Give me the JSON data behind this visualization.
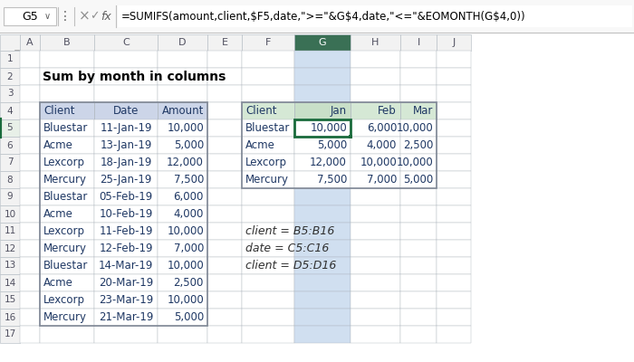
{
  "formula_bar_cell": "G5",
  "formula_bar_formula": "=SUMIFS(amount,client,$F5,date,\">=\"&G$4,date,\"<=\"&EOMONTH(G$4,0))",
  "title": "Sum by month in columns",
  "col_letters": [
    "A",
    "B",
    "C",
    "D",
    "E",
    "F",
    "G",
    "H",
    "I",
    "J"
  ],
  "row_numbers": [
    "1",
    "2",
    "3",
    "4",
    "5",
    "6",
    "7",
    "8",
    "9",
    "10",
    "11",
    "12",
    "13",
    "14",
    "15",
    "16",
    "17"
  ],
  "left_table_headers": [
    "Client",
    "Date",
    "Amount"
  ],
  "left_table_data": [
    [
      "Bluestar",
      "11-Jan-19",
      "10,000"
    ],
    [
      "Acme",
      "13-Jan-19",
      "5,000"
    ],
    [
      "Lexcorp",
      "18-Jan-19",
      "12,000"
    ],
    [
      "Mercury",
      "25-Jan-19",
      "7,500"
    ],
    [
      "Bluestar",
      "05-Feb-19",
      "6,000"
    ],
    [
      "Acme",
      "10-Feb-19",
      "4,000"
    ],
    [
      "Lexcorp",
      "11-Feb-19",
      "10,000"
    ],
    [
      "Mercury",
      "12-Feb-19",
      "7,000"
    ],
    [
      "Bluestar",
      "14-Mar-19",
      "10,000"
    ],
    [
      "Acme",
      "20-Mar-19",
      "2,500"
    ],
    [
      "Lexcorp",
      "23-Mar-19",
      "10,000"
    ],
    [
      "Mercury",
      "21-Mar-19",
      "5,000"
    ]
  ],
  "right_table_headers": [
    "Client",
    "Jan",
    "Feb",
    "Mar"
  ],
  "right_table_data": [
    [
      "Bluestar",
      "10,000",
      "6,000",
      "10,000"
    ],
    [
      "Acme",
      "5,000",
      "4,000",
      "2,500"
    ],
    [
      "Lexcorp",
      "12,000",
      "10,000",
      "10,000"
    ],
    [
      "Mercury",
      "7,500",
      "7,000",
      "5,000"
    ]
  ],
  "named_ranges": [
    "client = B5:B16",
    "date = C5:C16",
    "client = D5:D16"
  ],
  "color_header_left": "#ccd5e8",
  "color_header_right": "#d5e8d5",
  "color_selected_col_g": "#d0dff0",
  "color_selected_cell_border": "#1a6b3c",
  "color_grid_line": "#b0b8c0",
  "color_row_num_bg": "#f2f2f2",
  "color_col_hdr_bg": "#f2f2f2",
  "color_col_g_hdr_bg": "#3a7055",
  "color_col_g_hdr_text": "#ffffff",
  "color_top_bar_bg": "#f8f8f8",
  "color_formula_box_border": "#c0c0c0",
  "color_row5_num_highlight": "#d5e8d5",
  "text_color_table": "#1f3864",
  "bg_color": "#ffffff"
}
